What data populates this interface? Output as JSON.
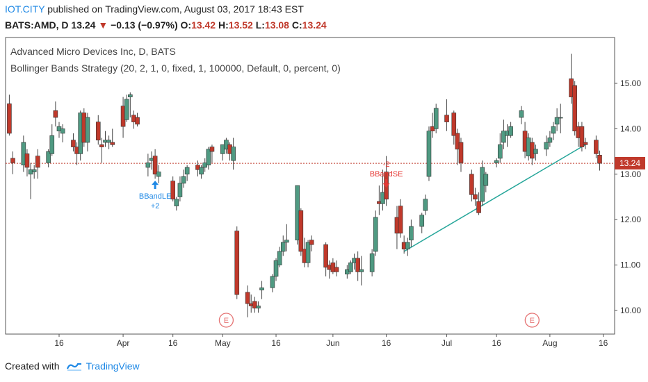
{
  "header": {
    "brand": "IOT.CITY",
    "published": "published on TradingView.com, August 03, 2017 18:43 EST",
    "symbol": "BATS:AMD, D",
    "last": "13.24",
    "arrow": "▼",
    "change": "−0.13 (−0.97%)",
    "o_label": "O:",
    "o_value": "13.42",
    "h_label": "H:",
    "h_value": "13.52",
    "l_label": "L:",
    "l_value": "13.08",
    "c_label": "C:",
    "c_value": "13.24"
  },
  "legend": {
    "line1": "Advanced Micro Devices Inc, D, BATS",
    "line2": "Bollinger Bands Strategy (20, 2, 1, 0, fixed, 1, 100000, Default, 0, percent, 0)"
  },
  "price_tag": "13.24",
  "footer": {
    "created_with": "Created with",
    "brand": "TradingView"
  },
  "colors": {
    "up": "#4f9a82",
    "down": "#c0392b",
    "long_signal": "#1e88e5",
    "short_signal": "#e53935",
    "trendline": "#26a69a",
    "earnings": "#e57373"
  },
  "chart_data": {
    "type": "candlestick",
    "y_axis": {
      "range": [
        9.6,
        15.9
      ],
      "ticks": [
        "10.00",
        "11.00",
        "12.00",
        "13.00",
        "14.00",
        "15.00"
      ],
      "position": "right"
    },
    "x_axis": {
      "ticks": [
        {
          "label": "16",
          "date": "2017-03-16"
        },
        {
          "label": "Apr",
          "date": "2017-04-03"
        },
        {
          "label": "16",
          "date": "2017-04-17"
        },
        {
          "label": "May",
          "date": "2017-05-01"
        },
        {
          "label": "16",
          "date": "2017-05-16"
        },
        {
          "label": "Jun",
          "date": "2017-06-01"
        },
        {
          "label": "16",
          "date": "2017-06-16"
        },
        {
          "label": "Jul",
          "date": "2017-07-03"
        },
        {
          "label": "16",
          "date": "2017-07-17"
        },
        {
          "label": "Aug",
          "date": "2017-08-01"
        },
        {
          "label": "16",
          "date": "2017-08-16"
        }
      ]
    },
    "candles": [
      {
        "date": "2017-03-02",
        "o": 14.55,
        "h": 14.75,
        "c": 13.9,
        "l": 13.85
      },
      {
        "date": "2017-03-03",
        "o": 13.35,
        "h": 13.5,
        "c": 13.25,
        "l": 13.0
      },
      {
        "date": "2017-03-06",
        "o": 13.2,
        "h": 13.85,
        "c": 13.7,
        "l": 13.05
      },
      {
        "date": "2017-03-07",
        "o": 13.45,
        "h": 13.55,
        "c": 13.15,
        "l": 12.95
      },
      {
        "date": "2017-03-08",
        "o": 13.0,
        "h": 13.25,
        "c": 13.1,
        "l": 12.45
      },
      {
        "date": "2017-03-09",
        "o": 13.05,
        "h": 13.2,
        "c": 13.1,
        "l": 12.9
      },
      {
        "date": "2017-03-10",
        "o": 13.4,
        "h": 13.55,
        "c": 13.15,
        "l": 12.9
      },
      {
        "date": "2017-03-13",
        "o": 13.25,
        "h": 13.55,
        "c": 13.5,
        "l": 13.15
      },
      {
        "date": "2017-03-14",
        "o": 13.45,
        "h": 14.1,
        "c": 13.85,
        "l": 13.4
      },
      {
        "date": "2017-03-15",
        "o": 14.4,
        "h": 14.6,
        "c": 14.25,
        "l": 14.05
      },
      {
        "date": "2017-03-16",
        "o": 13.95,
        "h": 14.15,
        "c": 14.05,
        "l": 13.8
      },
      {
        "date": "2017-03-17",
        "o": 13.9,
        "h": 14.1,
        "c": 14.0,
        "l": 13.7
      },
      {
        "date": "2017-03-20",
        "o": 13.75,
        "h": 13.9,
        "c": 13.6,
        "l": 13.5
      },
      {
        "date": "2017-03-21",
        "o": 13.6,
        "h": 13.7,
        "c": 13.45,
        "l": 13.2
      },
      {
        "date": "2017-03-22",
        "o": 13.45,
        "h": 14.4,
        "c": 14.35,
        "l": 13.3
      },
      {
        "date": "2017-03-23",
        "o": 14.35,
        "h": 14.45,
        "c": 13.7,
        "l": 13.6
      },
      {
        "date": "2017-03-24",
        "o": 13.7,
        "h": 14.35,
        "c": 14.25,
        "l": 13.5
      },
      {
        "date": "2017-03-27",
        "o": 14.15,
        "h": 14.3,
        "c": 13.75,
        "l": 13.65
      },
      {
        "date": "2017-03-28",
        "o": 13.65,
        "h": 13.8,
        "c": 13.6,
        "l": 13.25
      },
      {
        "date": "2017-03-29",
        "o": 13.7,
        "h": 13.95,
        "c": 13.75,
        "l": 13.6
      },
      {
        "date": "2017-03-30",
        "o": 13.7,
        "h": 13.85,
        "c": 13.75,
        "l": 13.55
      },
      {
        "date": "2017-03-31",
        "o": 13.7,
        "h": 14.0,
        "c": 13.65,
        "l": 13.6
      },
      {
        "date": "2017-04-03",
        "o": 14.5,
        "h": 14.7,
        "c": 14.05,
        "l": 13.8
      },
      {
        "date": "2017-04-04",
        "o": 14.2,
        "h": 14.75,
        "c": 14.65,
        "l": 14.15
      },
      {
        "date": "2017-04-05",
        "o": 14.7,
        "h": 14.8,
        "c": 14.75,
        "l": 14.25
      },
      {
        "date": "2017-04-06",
        "o": 14.3,
        "h": 14.4,
        "c": 14.15,
        "l": 14.0
      },
      {
        "date": "2017-04-07",
        "o": 14.25,
        "h": 14.35,
        "c": 14.1,
        "l": 14.05
      },
      {
        "date": "2017-04-10",
        "o": 13.15,
        "h": 13.45,
        "c": 13.25,
        "l": 12.95
      },
      {
        "date": "2017-04-11",
        "o": 13.3,
        "h": 13.5,
        "c": 13.35,
        "l": 13.1
      },
      {
        "date": "2017-04-12",
        "o": 13.4,
        "h": 13.55,
        "c": 13.0,
        "l": 12.9
      },
      {
        "date": "2017-04-13",
        "o": 12.95,
        "h": 13.2,
        "c": 13.05,
        "l": 12.8
      },
      {
        "date": "2017-04-17",
        "o": 12.85,
        "h": 12.95,
        "c": 12.45,
        "l": 12.4
      },
      {
        "date": "2017-04-18",
        "o": 12.3,
        "h": 12.5,
        "c": 12.45,
        "l": 12.2
      },
      {
        "date": "2017-04-19",
        "o": 12.5,
        "h": 12.95,
        "c": 12.8,
        "l": 12.4
      },
      {
        "date": "2017-04-20",
        "o": 12.8,
        "h": 13.1,
        "c": 12.95,
        "l": 12.7
      },
      {
        "date": "2017-04-21",
        "o": 13.0,
        "h": 13.2,
        "c": 13.15,
        "l": 12.85
      },
      {
        "date": "2017-04-24",
        "o": 13.2,
        "h": 13.3,
        "c": 13.1,
        "l": 12.95
      },
      {
        "date": "2017-04-25",
        "o": 13.0,
        "h": 13.2,
        "c": 13.15,
        "l": 12.9
      },
      {
        "date": "2017-04-26",
        "o": 13.15,
        "h": 13.35,
        "c": 13.25,
        "l": 13.05
      },
      {
        "date": "2017-04-27",
        "o": 13.2,
        "h": 13.6,
        "c": 13.55,
        "l": 13.1
      },
      {
        "date": "2017-04-28",
        "o": 13.6,
        "h": 13.65,
        "c": 13.5,
        "l": 13.25
      },
      {
        "date": "2017-05-01",
        "o": 13.45,
        "h": 13.6,
        "c": 13.65,
        "l": 13.3
      },
      {
        "date": "2017-05-02",
        "o": 13.55,
        "h": 13.8,
        "c": 13.75,
        "l": 13.45
      },
      {
        "date": "2017-05-03",
        "o": 13.65,
        "h": 13.7,
        "c": 13.45,
        "l": 13.3
      },
      {
        "date": "2017-05-04",
        "o": 13.3,
        "h": 13.8,
        "c": 13.6,
        "l": 13.1
      },
      {
        "date": "2017-05-05",
        "o": 11.75,
        "h": 11.85,
        "c": 10.35,
        "l": 10.25
      },
      {
        "date": "2017-05-08",
        "o": 10.4,
        "h": 10.55,
        "c": 10.15,
        "l": 9.85
      },
      {
        "date": "2017-05-09",
        "o": 10.15,
        "h": 10.35,
        "c": 10.1,
        "l": 9.95
      },
      {
        "date": "2017-05-10",
        "o": 10.2,
        "h": 10.3,
        "c": 10.05,
        "l": 9.95
      },
      {
        "date": "2017-05-11",
        "o": 10.05,
        "h": 10.2,
        "c": 10.1,
        "l": 9.95
      },
      {
        "date": "2017-05-12",
        "o": 10.45,
        "h": 10.65,
        "c": 10.5,
        "l": 10.25
      },
      {
        "date": "2017-05-15",
        "o": 10.5,
        "h": 10.8,
        "c": 10.75,
        "l": 10.4
      },
      {
        "date": "2017-05-16",
        "o": 10.75,
        "h": 11.15,
        "c": 11.1,
        "l": 10.65
      },
      {
        "date": "2017-05-17",
        "o": 11.0,
        "h": 11.4,
        "c": 11.3,
        "l": 10.95
      },
      {
        "date": "2017-05-18",
        "o": 11.3,
        "h": 11.65,
        "c": 11.5,
        "l": 11.2
      },
      {
        "date": "2017-05-19",
        "o": 11.5,
        "h": 11.9,
        "c": 11.55,
        "l": 11.3
      },
      {
        "date": "2017-05-22",
        "o": 11.55,
        "h": 12.75,
        "c": 12.75,
        "l": 11.45
      },
      {
        "date": "2017-05-23",
        "o": 12.2,
        "h": 12.25,
        "c": 11.3,
        "l": 11.2
      },
      {
        "date": "2017-05-24",
        "o": 11.35,
        "h": 11.6,
        "c": 11.05,
        "l": 10.95
      },
      {
        "date": "2017-05-25",
        "o": 11.05,
        "h": 11.55,
        "c": 11.5,
        "l": 10.95
      },
      {
        "date": "2017-05-26",
        "o": 11.55,
        "h": 11.65,
        "c": 11.45,
        "l": 11.3
      },
      {
        "date": "2017-05-30",
        "o": 11.45,
        "h": 11.5,
        "c": 10.95,
        "l": 10.75
      },
      {
        "date": "2017-05-31",
        "o": 11.0,
        "h": 11.1,
        "c": 10.9,
        "l": 10.7
      },
      {
        "date": "2017-06-01",
        "o": 11.05,
        "h": 11.15,
        "c": 10.85,
        "l": 10.8
      },
      {
        "date": "2017-06-02",
        "o": 10.95,
        "h": 11.1,
        "c": 10.85,
        "l": 10.75
      },
      {
        "date": "2017-06-05",
        "o": 10.8,
        "h": 11.0,
        "c": 10.9,
        "l": 10.7
      },
      {
        "date": "2017-06-06",
        "o": 10.85,
        "h": 11.1,
        "c": 11.05,
        "l": 10.8
      },
      {
        "date": "2017-06-07",
        "o": 11.05,
        "h": 11.25,
        "c": 11.15,
        "l": 10.9
      },
      {
        "date": "2017-06-08",
        "o": 11.15,
        "h": 11.3,
        "c": 10.85,
        "l": 10.65
      },
      {
        "date": "2017-06-09",
        "o": 10.85,
        "h": 11.2,
        "c": 10.9,
        "l": 10.55
      },
      {
        "date": "2017-06-12",
        "o": 10.85,
        "h": 11.35,
        "c": 11.25,
        "l": 10.75
      },
      {
        "date": "2017-06-13",
        "o": 11.3,
        "h": 12.2,
        "c": 12.05,
        "l": 11.2
      },
      {
        "date": "2017-06-14",
        "o": 12.4,
        "h": 12.75,
        "c": 12.35,
        "l": 12.1
      },
      {
        "date": "2017-06-15",
        "o": 12.35,
        "h": 13.1,
        "c": 12.6,
        "l": 12.2
      },
      {
        "date": "2017-06-16",
        "o": 13.05,
        "h": 13.4,
        "c": 12.45,
        "l": 12.3
      },
      {
        "date": "2017-06-19",
        "o": 12.05,
        "h": 12.3,
        "c": 11.7,
        "l": 11.35
      },
      {
        "date": "2017-06-20",
        "o": 12.3,
        "h": 12.45,
        "c": 11.7,
        "l": 11.6
      },
      {
        "date": "2017-06-21",
        "o": 11.5,
        "h": 11.65,
        "c": 11.35,
        "l": 11.25
      },
      {
        "date": "2017-06-22",
        "o": 11.35,
        "h": 11.6,
        "c": 11.5,
        "l": 11.2
      },
      {
        "date": "2017-06-23",
        "o": 11.55,
        "h": 12.0,
        "c": 11.85,
        "l": 11.4
      },
      {
        "date": "2017-06-26",
        "o": 11.85,
        "h": 12.15,
        "c": 12.1,
        "l": 11.7
      },
      {
        "date": "2017-06-27",
        "o": 12.2,
        "h": 12.55,
        "c": 12.45,
        "l": 12.1
      },
      {
        "date": "2017-06-28",
        "o": 12.95,
        "h": 14.05,
        "c": 13.95,
        "l": 12.85
      },
      {
        "date": "2017-06-29",
        "o": 14.05,
        "h": 14.35,
        "c": 13.95,
        "l": 13.8
      },
      {
        "date": "2017-06-30",
        "o": 14.0,
        "h": 14.55,
        "c": 14.45,
        "l": 13.9
      },
      {
        "date": "2017-07-03",
        "o": 14.3,
        "h": 14.65,
        "c": 14.15,
        "l": 13.95
      },
      {
        "date": "2017-07-05",
        "o": 14.35,
        "h": 14.4,
        "c": 13.85,
        "l": 13.65
      },
      {
        "date": "2017-07-06",
        "o": 13.9,
        "h": 14.0,
        "c": 13.55,
        "l": 13.2
      },
      {
        "date": "2017-07-07",
        "o": 13.7,
        "h": 13.8,
        "c": 13.25,
        "l": 13.05
      },
      {
        "date": "2017-07-10",
        "o": 13.0,
        "h": 13.1,
        "c": 12.55,
        "l": 12.4
      },
      {
        "date": "2017-07-11",
        "o": 12.55,
        "h": 12.7,
        "c": 12.45,
        "l": 12.3
      },
      {
        "date": "2017-07-12",
        "o": 12.4,
        "h": 12.6,
        "c": 12.15,
        "l": 12.1
      },
      {
        "date": "2017-07-13",
        "o": 12.4,
        "h": 13.3,
        "c": 13.15,
        "l": 12.3
      },
      {
        "date": "2017-07-14",
        "o": 12.75,
        "h": 13.05,
        "c": 13.0,
        "l": 12.6
      },
      {
        "date": "2017-07-17",
        "o": 13.25,
        "h": 13.35,
        "c": 13.3,
        "l": 13.15
      },
      {
        "date": "2017-07-18",
        "o": 13.35,
        "h": 13.9,
        "c": 13.65,
        "l": 13.25
      },
      {
        "date": "2017-07-19",
        "o": 13.7,
        "h": 14.2,
        "c": 13.95,
        "l": 13.55
      },
      {
        "date": "2017-07-20",
        "o": 13.85,
        "h": 14.1,
        "c": 13.95,
        "l": 13.6
      },
      {
        "date": "2017-07-21",
        "o": 13.85,
        "h": 14.15,
        "c": 14.05,
        "l": 13.8
      },
      {
        "date": "2017-07-24",
        "o": 14.25,
        "h": 14.5,
        "c": 14.4,
        "l": 14.1
      },
      {
        "date": "2017-07-25",
        "o": 13.95,
        "h": 14.15,
        "c": 13.5,
        "l": 13.35
      },
      {
        "date": "2017-07-26",
        "o": 13.4,
        "h": 13.9,
        "c": 13.8,
        "l": 13.3
      },
      {
        "date": "2017-07-27",
        "o": 13.7,
        "h": 13.8,
        "c": 13.35,
        "l": 13.2
      },
      {
        "date": "2017-07-28",
        "o": 13.45,
        "h": 13.65,
        "c": 13.55,
        "l": 13.3
      },
      {
        "date": "2017-07-31",
        "o": 13.55,
        "h": 13.85,
        "c": 13.7,
        "l": 13.4
      },
      {
        "date": "2017-08-01",
        "o": 13.7,
        "h": 13.95,
        "c": 13.8,
        "l": 13.6
      },
      {
        "date": "2017-08-02",
        "o": 13.9,
        "h": 14.15,
        "c": 14.05,
        "l": 13.75
      },
      {
        "date": "2017-08-03",
        "o": 14.1,
        "h": 14.45,
        "c": 14.25,
        "l": 13.95
      },
      {
        "date": "2017-08-04",
        "o": 14.25,
        "h": 14.55,
        "c": 14.25,
        "l": 13.9
      },
      {
        "date": "2017-08-07",
        "o": 15.1,
        "h": 15.65,
        "c": 14.7,
        "l": 14.55
      },
      {
        "date": "2017-08-08",
        "o": 14.95,
        "h": 15.05,
        "c": 13.95,
        "l": 13.85
      },
      {
        "date": "2017-08-09",
        "o": 14.05,
        "h": 14.15,
        "c": 13.8,
        "l": 13.6
      },
      {
        "date": "2017-08-10",
        "o": 14.05,
        "h": 14.15,
        "c": 13.6,
        "l": 13.5
      },
      {
        "date": "2017-08-11",
        "o": 13.7,
        "h": 13.8,
        "c": 13.65,
        "l": 13.55
      },
      {
        "date": "2017-08-14",
        "o": 13.75,
        "h": 13.85,
        "c": 13.45,
        "l": 13.35
      },
      {
        "date": "2017-08-15",
        "o": 13.42,
        "h": 13.52,
        "c": 13.24,
        "l": 13.08
      }
    ],
    "markers": [
      {
        "kind": "long",
        "label": "BBandLE",
        "qty": "+2",
        "date": "2017-04-12",
        "price": 12.95
      },
      {
        "kind": "short",
        "label": "BBandSE",
        "qty": "-2",
        "date": "2017-06-16",
        "price": 12.95
      }
    ],
    "earnings": [
      {
        "label": "E",
        "date": "2017-05-02"
      },
      {
        "label": "E",
        "date": "2017-07-27"
      }
    ],
    "trendline": [
      {
        "date": "2017-06-21",
        "price": 11.3
      },
      {
        "date": "2017-08-11",
        "price": 13.65
      }
    ],
    "last_price": 13.24
  }
}
